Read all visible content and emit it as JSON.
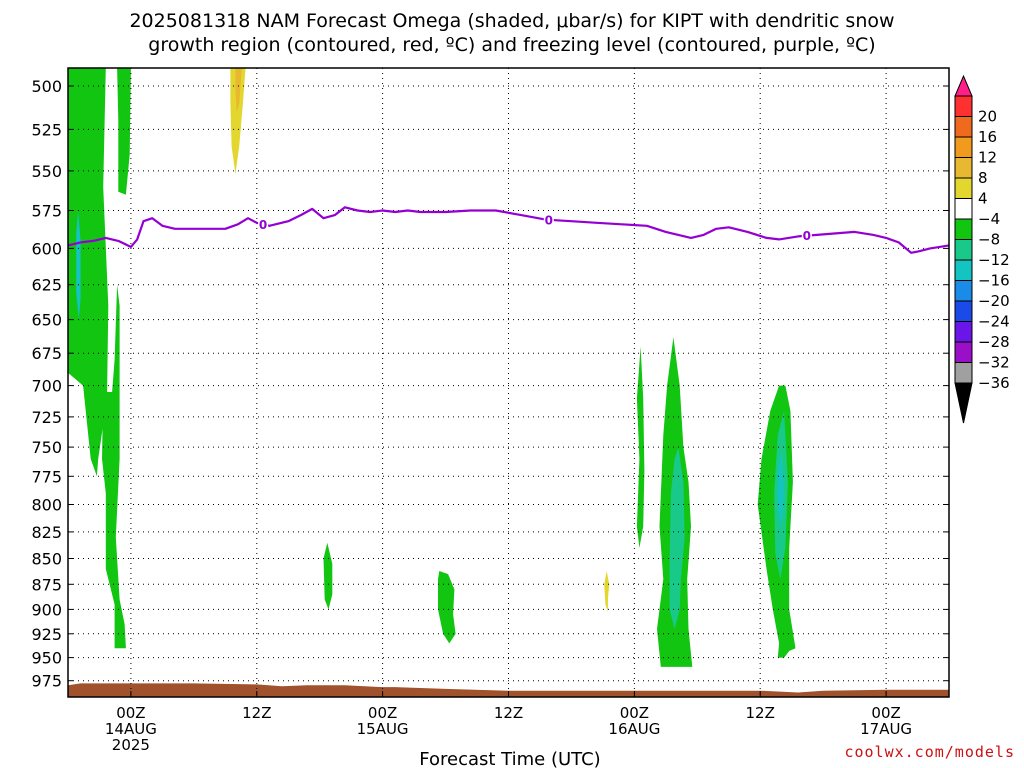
{
  "chart_data": {
    "type": "heatmap",
    "title_line1": "2025081318 NAM Forecast Omega (shaded, μbar/s) for KIPT with dendritic snow",
    "title_line2": "growth region (contoured, red, ºC) and freezing level (contoured, purple, ºC)",
    "xlabel": "Forecast Time (UTC)",
    "credit": "coolwx.com/models",
    "y_axis": {
      "label": "",
      "ticks": [
        500,
        525,
        550,
        575,
        600,
        625,
        650,
        675,
        700,
        725,
        750,
        775,
        800,
        825,
        850,
        875,
        900,
        925,
        950,
        975
      ],
      "range": [
        490,
        993
      ],
      "scale": "log-pressure"
    },
    "x_axis": {
      "range_hours": [
        -5,
        65
      ],
      "ticks": [
        {
          "hour": 0,
          "label": "00Z",
          "sub": "14AUG",
          "sub2": "2025"
        },
        {
          "hour": 10,
          "label": "12Z",
          "sub": "",
          "sub2": ""
        },
        {
          "hour": 20,
          "label": "00Z",
          "sub": "15AUG",
          "sub2": ""
        },
        {
          "hour": 30,
          "label": "12Z",
          "sub": "",
          "sub2": ""
        },
        {
          "hour": 40,
          "label": "00Z",
          "sub": "16AUG",
          "sub2": ""
        },
        {
          "hour": 50,
          "label": "12Z",
          "sub": "",
          "sub2": ""
        },
        {
          "hour": 60,
          "label": "00Z",
          "sub": "17AUG",
          "sub2": ""
        }
      ]
    },
    "colorbar": {
      "labels": [
        "20",
        "16",
        "12",
        "8",
        "4",
        "−4",
        "−8",
        "−12",
        "−16",
        "−20",
        "−24",
        "−28",
        "−32",
        "−36"
      ],
      "colors": [
        "#ff1f88",
        "#ff3030",
        "#f06a1e",
        "#f09a1e",
        "#e8b830",
        "#e3d62e",
        "#ffffff",
        "#11c511",
        "#19c98a",
        "#14c4c0",
        "#1a8ce8",
        "#1a4ae8",
        "#6a16e8",
        "#9a10c8",
        "#a0a0a0",
        "#000000"
      ]
    },
    "freezing_level": {
      "value_label": "0",
      "label_hours": [
        10.5,
        33.2,
        53.7
      ],
      "points": [
        [
          -5,
          598
        ],
        [
          -4,
          596
        ],
        [
          -3,
          595
        ],
        [
          -2,
          593
        ],
        [
          -1,
          595
        ],
        [
          0,
          599
        ],
        [
          0.5,
          594
        ],
        [
          1,
          582
        ],
        [
          1.7,
          580
        ],
        [
          2.5,
          585
        ],
        [
          3.5,
          587
        ],
        [
          4.5,
          587
        ],
        [
          5.5,
          587
        ],
        [
          6.5,
          587
        ],
        [
          7.5,
          587
        ],
        [
          8.5,
          584
        ],
        [
          9.3,
          580
        ],
        [
          10,
          583
        ],
        [
          11,
          585
        ],
        [
          12.5,
          582
        ],
        [
          13.5,
          578
        ],
        [
          14.4,
          574
        ],
        [
          15.3,
          580
        ],
        [
          16.2,
          578
        ],
        [
          17,
          573
        ],
        [
          18,
          575
        ],
        [
          19,
          576
        ],
        [
          20,
          575
        ],
        [
          21,
          576
        ],
        [
          22,
          575
        ],
        [
          23,
          576
        ],
        [
          25,
          576
        ],
        [
          27,
          575
        ],
        [
          29,
          575
        ],
        [
          31,
          578
        ],
        [
          33,
          581
        ],
        [
          35,
          582
        ],
        [
          37,
          583
        ],
        [
          39,
          584
        ],
        [
          41,
          585
        ],
        [
          42.5,
          589
        ],
        [
          43.5,
          591
        ],
        [
          44.5,
          593
        ],
        [
          45.5,
          591
        ],
        [
          46.5,
          587
        ],
        [
          47.5,
          586
        ],
        [
          49,
          589
        ],
        [
          50.5,
          593
        ],
        [
          51.5,
          594
        ],
        [
          53,
          592
        ],
        [
          54.5,
          591
        ],
        [
          56,
          590
        ],
        [
          57.5,
          589
        ],
        [
          59,
          591
        ],
        [
          60,
          593
        ],
        [
          61,
          596
        ],
        [
          62,
          603
        ],
        [
          62.6,
          602
        ],
        [
          63.5,
          600
        ],
        [
          65,
          598
        ]
      ]
    },
    "shaded_regions": [
      {
        "name": "omega-neg-4-tower-a",
        "value": "-4 to -8",
        "points": [
          [
            -5,
            490
          ],
          [
            -2,
            490
          ],
          [
            -2.2,
            560
          ],
          [
            -1.8,
            640
          ],
          [
            -1.9,
            710
          ],
          [
            -2.6,
            760
          ],
          [
            -2.7,
            775
          ],
          [
            -3.2,
            760
          ],
          [
            -3.8,
            700
          ],
          [
            -5,
            690
          ]
        ]
      },
      {
        "name": "omega-neg-4-tower-a-lower",
        "value": "-4 to -8",
        "points": [
          [
            -2.2,
            705
          ],
          [
            -1.5,
            705
          ],
          [
            -1.3,
            680
          ],
          [
            -1.1,
            625
          ],
          [
            -0.9,
            640
          ],
          [
            -0.9,
            760
          ],
          [
            -1.2,
            830
          ],
          [
            -0.9,
            890
          ],
          [
            -0.5,
            915
          ],
          [
            -0.4,
            940
          ],
          [
            -1.3,
            940
          ],
          [
            -1.3,
            895
          ],
          [
            -2,
            860
          ],
          [
            -2,
            790
          ],
          [
            -2.3,
            760
          ]
        ]
      },
      {
        "name": "omega-neg-4-tower-b",
        "value": "-4 to -8",
        "points": [
          [
            -1.1,
            490
          ],
          [
            0,
            490
          ],
          [
            -0.1,
            540
          ],
          [
            -0.4,
            565
          ],
          [
            -1.0,
            563
          ],
          [
            -1.0,
            520
          ]
        ]
      },
      {
        "name": "omega-neg-4-hour16",
        "value": "-4 to -8",
        "points": [
          [
            15.6,
            835
          ],
          [
            16.0,
            855
          ],
          [
            16.0,
            885
          ],
          [
            15.7,
            900
          ],
          [
            15.4,
            890
          ],
          [
            15.3,
            850
          ]
        ]
      },
      {
        "name": "omega-neg-4-hour26",
        "value": "-4 to -8",
        "points": [
          [
            24.5,
            862
          ],
          [
            25.2,
            865
          ],
          [
            25.7,
            880
          ],
          [
            25.6,
            905
          ],
          [
            25.8,
            925
          ],
          [
            25.3,
            935
          ],
          [
            24.8,
            925
          ],
          [
            24.4,
            900
          ],
          [
            24.4,
            870
          ]
        ]
      },
      {
        "name": "omega-neg-4-hour41",
        "value": "-4 to -8",
        "points": [
          [
            40.5,
            670
          ],
          [
            40.7,
            710
          ],
          [
            40.8,
            770
          ],
          [
            40.7,
            820
          ],
          [
            40.4,
            840
          ],
          [
            40.2,
            820
          ],
          [
            40.4,
            760
          ],
          [
            40.2,
            710
          ]
        ]
      },
      {
        "name": "omega-neg-4-hour43",
        "value": "-4 to -8",
        "points": [
          [
            43.1,
            663
          ],
          [
            43.6,
            700
          ],
          [
            43.9,
            750
          ],
          [
            44.3,
            780
          ],
          [
            44.5,
            820
          ],
          [
            44.2,
            870
          ],
          [
            44.3,
            920
          ],
          [
            44.6,
            960
          ],
          [
            42.1,
            960
          ],
          [
            41.8,
            920
          ],
          [
            42.3,
            870
          ],
          [
            42.0,
            820
          ],
          [
            42.3,
            740
          ],
          [
            42.6,
            700
          ]
        ]
      },
      {
        "name": "omega-neg-4-hour51",
        "value": "-4 to -8",
        "points": [
          [
            52.0,
            700
          ],
          [
            52.4,
            720
          ],
          [
            52.6,
            780
          ],
          [
            52.3,
            840
          ],
          [
            52.3,
            900
          ],
          [
            52.8,
            940
          ],
          [
            52.3,
            943
          ],
          [
            51.9,
            950
          ],
          [
            51.4,
            950
          ],
          [
            51.5,
            935
          ],
          [
            51.0,
            900
          ],
          [
            50.5,
            860
          ],
          [
            49.8,
            800
          ],
          [
            50.1,
            760
          ],
          [
            50.8,
            720
          ],
          [
            51.5,
            700
          ]
        ]
      },
      {
        "name": "omega-neg-8-hour43",
        "value": "-8 to -12",
        "points": [
          [
            43.5,
            750
          ],
          [
            43.9,
            780
          ],
          [
            44.0,
            830
          ],
          [
            43.7,
            870
          ],
          [
            43.6,
            900
          ],
          [
            43.2,
            920
          ],
          [
            42.8,
            900
          ],
          [
            42.8,
            850
          ],
          [
            42.9,
            790
          ],
          [
            43.2,
            760
          ]
        ]
      },
      {
        "name": "omega-neg-8-hour51",
        "value": "-8 to -12",
        "points": [
          [
            51.9,
            720
          ],
          [
            52.2,
            780
          ],
          [
            52.0,
            840
          ],
          [
            51.6,
            870
          ],
          [
            51.2,
            845
          ],
          [
            51.1,
            790
          ],
          [
            51.4,
            740
          ]
        ]
      },
      {
        "name": "omega-neg-12-hour51",
        "value": "-12 to -16",
        "points": [
          [
            51.7,
            755
          ],
          [
            51.9,
            790
          ],
          [
            51.7,
            820
          ],
          [
            51.4,
            805
          ],
          [
            51.4,
            770
          ]
        ]
      },
      {
        "name": "omega-neg-12-thin",
        "value": "-12 to -16",
        "points": [
          [
            -4.2,
            575
          ],
          [
            -4.0,
            595
          ],
          [
            -4.0,
            635
          ],
          [
            -4.15,
            650
          ],
          [
            -4.35,
            630
          ],
          [
            -4.35,
            590
          ]
        ]
      },
      {
        "name": "omega-pos-4-hour8",
        "value": "4 to 8",
        "points": [
          [
            7.9,
            490
          ],
          [
            9.1,
            490
          ],
          [
            8.9,
            510
          ],
          [
            8.6,
            535
          ],
          [
            8.3,
            552
          ],
          [
            8.0,
            535
          ],
          [
            7.9,
            510
          ]
        ]
      },
      {
        "name": "omega-pos-8-hour8",
        "value": "8 to 12",
        "points": [
          [
            8.3,
            490
          ],
          [
            8.8,
            490
          ],
          [
            8.6,
            510
          ],
          [
            8.4,
            515
          ],
          [
            8.3,
            500
          ]
        ]
      },
      {
        "name": "omega-pos-4-hour38",
        "value": "4 to 8",
        "points": [
          [
            37.8,
            862
          ],
          [
            38.0,
            875
          ],
          [
            37.9,
            890
          ],
          [
            37.9,
            902
          ],
          [
            37.7,
            895
          ],
          [
            37.6,
            875
          ]
        ]
      }
    ],
    "ground_band_color": "#a0522d",
    "ground_points": [
      [
        -5,
        980
      ],
      [
        -4,
        978
      ],
      [
        -3,
        978
      ],
      [
        0,
        978
      ],
      [
        5,
        978
      ],
      [
        10,
        979
      ],
      [
        12,
        981
      ],
      [
        14,
        980
      ],
      [
        17,
        980
      ],
      [
        20,
        982
      ],
      [
        21,
        982
      ],
      [
        23,
        983
      ],
      [
        25,
        984
      ],
      [
        30,
        986
      ],
      [
        35,
        986
      ],
      [
        40,
        986
      ],
      [
        45,
        986
      ],
      [
        50,
        986
      ],
      [
        53,
        988
      ],
      [
        55,
        986
      ],
      [
        60,
        985
      ],
      [
        65,
        985
      ]
    ]
  }
}
